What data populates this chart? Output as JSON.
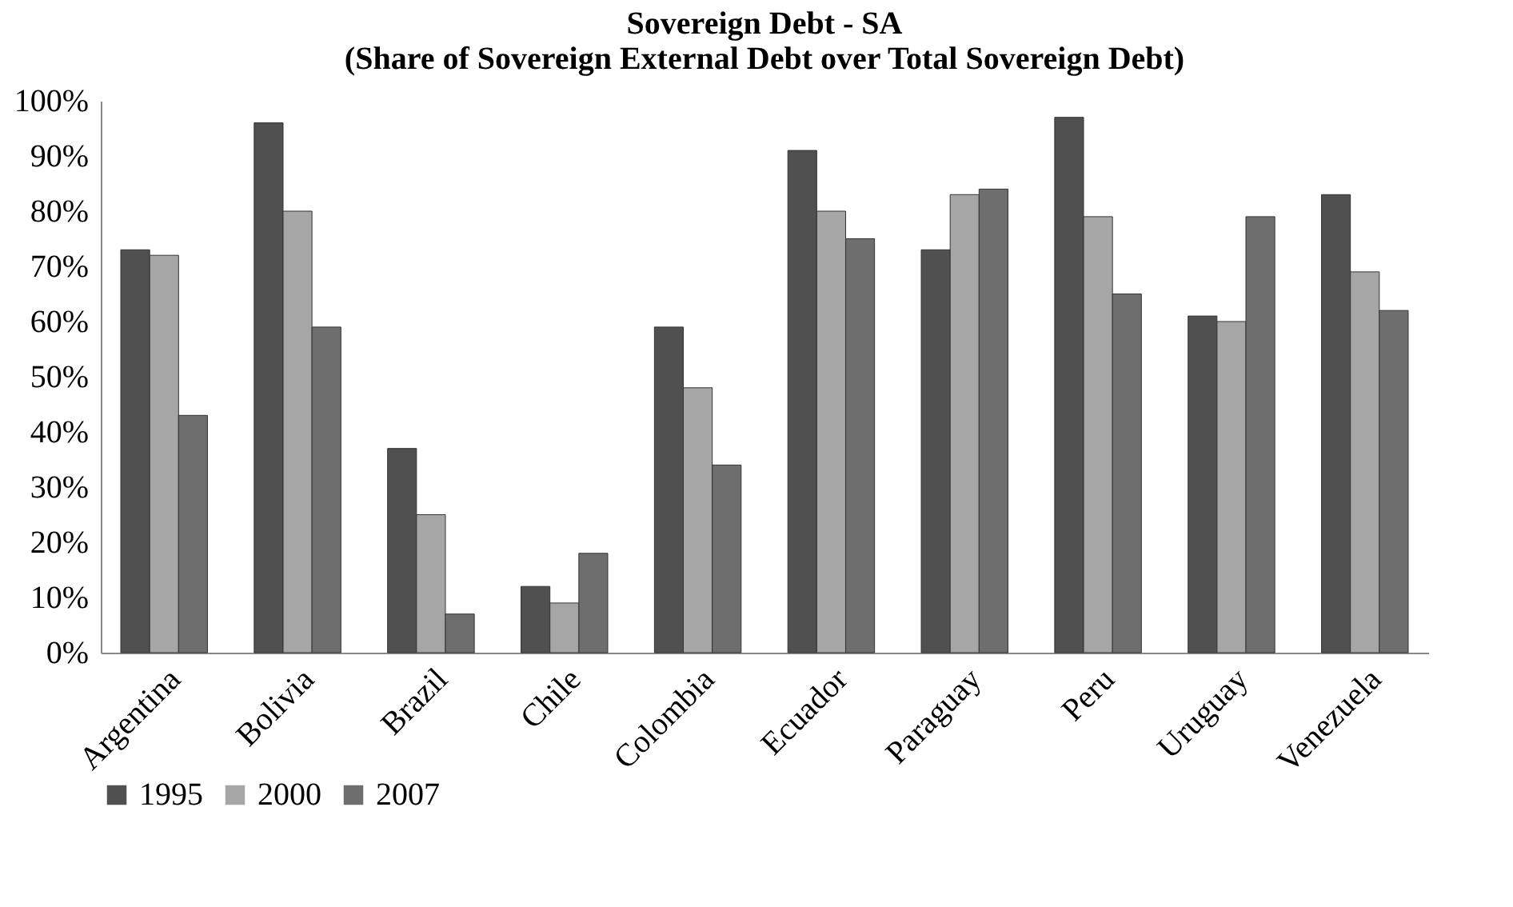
{
  "chart_data": {
    "type": "bar",
    "title": "Sovereign Debt - SA",
    "subtitle": "(Share of Sovereign External Debt over Total Sovereign Debt)",
    "categories": [
      "Argentina",
      "Bolivia",
      "Brazil",
      "Chile",
      "Colombia",
      "Ecuador",
      "Paraguay",
      "Peru",
      "Uruguay",
      "Venezuela"
    ],
    "series": [
      {
        "name": "1995",
        "color": "#505050",
        "values": [
          73,
          96,
          37,
          12,
          59,
          91,
          73,
          97,
          61,
          83
        ]
      },
      {
        "name": "2000",
        "color": "#a6a6a6",
        "values": [
          72,
          80,
          25,
          9,
          48,
          80,
          83,
          79,
          60,
          69
        ]
      },
      {
        "name": "2007",
        "color": "#6e6e6e",
        "values": [
          43,
          59,
          7,
          18,
          34,
          75,
          84,
          65,
          79,
          62
        ]
      }
    ],
    "ylim": [
      0,
      100
    ],
    "yticks": [
      {
        "value": 0,
        "label": "0%"
      },
      {
        "value": 10,
        "label": "10%"
      },
      {
        "value": 20,
        "label": "20%"
      },
      {
        "value": 30,
        "label": "30%"
      },
      {
        "value": 40,
        "label": "40%"
      },
      {
        "value": 50,
        "label": "50%"
      },
      {
        "value": 60,
        "label": "60%"
      },
      {
        "value": 70,
        "label": "70%"
      },
      {
        "value": 80,
        "label": "80%"
      },
      {
        "value": 90,
        "label": "90%"
      },
      {
        "value": 100,
        "label": "100%"
      }
    ],
    "grid": false,
    "legend": "bottom"
  }
}
